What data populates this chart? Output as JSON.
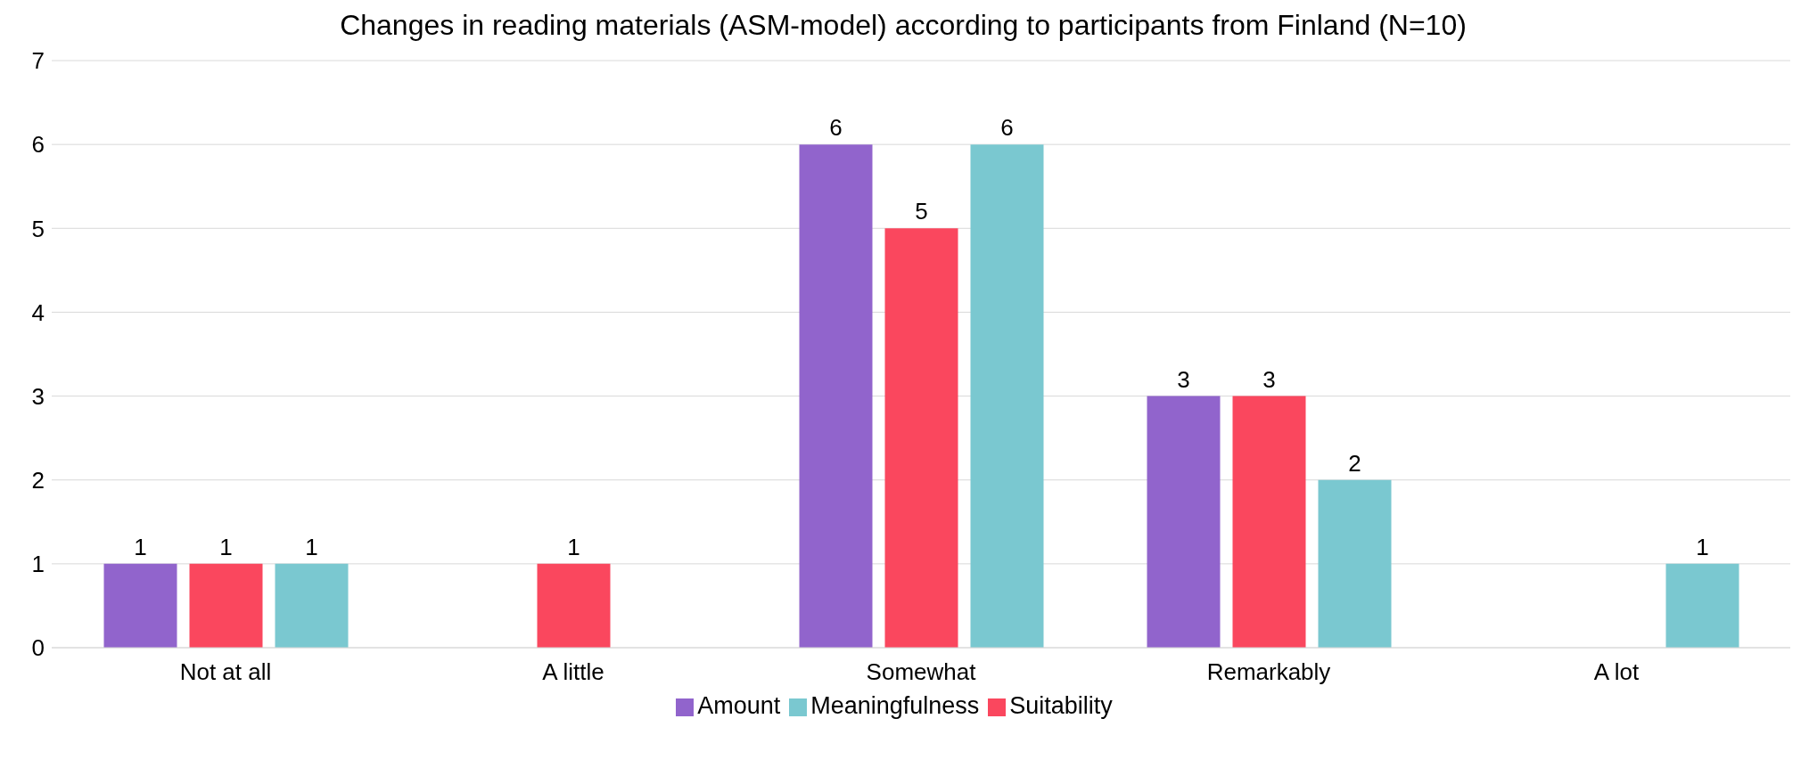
{
  "chart_data": {
    "type": "bar",
    "title": "Changes in reading materials (ASM-model) according to participants from Finland (N=10)",
    "categories": [
      "Not at all",
      "A little",
      "Somewhat",
      "Remarkably",
      "A lot"
    ],
    "series": [
      {
        "name": "Amount",
        "color": "#9164cc",
        "values": [
          1,
          null,
          6,
          3,
          null
        ]
      },
      {
        "name": "Suitability",
        "color": "#fa475e",
        "values": [
          1,
          1,
          5,
          3,
          null
        ]
      },
      {
        "name": "Meaningfulness",
        "color": "#7ac8d0",
        "values": [
          1,
          null,
          6,
          2,
          1
        ]
      }
    ],
    "ylim": [
      0,
      7
    ],
    "yticks": [
      0,
      1,
      2,
      3,
      4,
      5,
      6,
      7
    ],
    "grid": "y",
    "legend": "bottom",
    "data_labels": true
  }
}
